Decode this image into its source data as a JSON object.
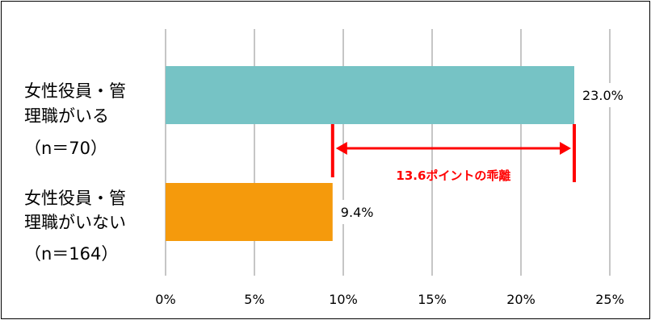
{
  "chart_data": {
    "type": "bar",
    "orientation": "horizontal",
    "categories": [
      [
        "女性役員・管",
        "理職がいる",
        "（n＝70）"
      ],
      [
        "女性役員・管",
        "理職がいない",
        "（n＝164）"
      ]
    ],
    "values": [
      23.0,
      9.4
    ],
    "value_labels": [
      "23.0%",
      "9.4%"
    ],
    "bar_colors": [
      "#76c3c5",
      "#f59a0c"
    ],
    "xlim": [
      0,
      25
    ],
    "xticks": [
      0,
      5,
      10,
      15,
      20,
      25
    ],
    "xtick_labels": [
      "0%",
      "5%",
      "10%",
      "15%",
      "20%",
      "25%"
    ],
    "grid": true,
    "annotation": {
      "text": "13.6ポイントの乖離",
      "from": 9.4,
      "to": 23.0,
      "color": "#ff0000"
    }
  }
}
